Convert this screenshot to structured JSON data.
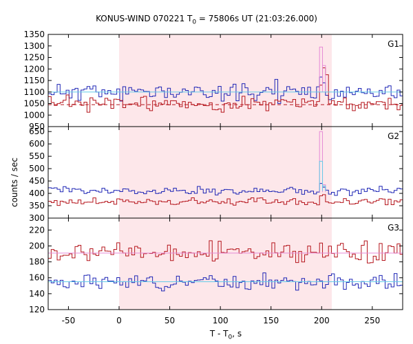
{
  "chart_data": {
    "type": "line",
    "title_main": "KONUS-WIND 070221 T",
    "title_sub": "0",
    "title_rest": " = 75806s UT (21:03:26.000)",
    "xlabel_main": "T - T",
    "xlabel_sub": "0",
    "xlabel_rest": ", s",
    "ylabel": "counts / sec",
    "xlim": [
      -70,
      280
    ],
    "x_ticks": [
      -50,
      0,
      50,
      100,
      150,
      200,
      250
    ],
    "x_tick_labels": [
      "-50",
      "0",
      "50",
      "100",
      "150",
      "200",
      "250"
    ],
    "highlight_interval": [
      0,
      210
    ],
    "highlight_color": "#fde7ea",
    "bin_width": 2.944,
    "panels": [
      {
        "name": "G1",
        "ylim": [
          950,
          1350
        ],
        "y_ticks": [
          950,
          1000,
          1050,
          1100,
          1150,
          1200,
          1250,
          1300,
          1350
        ],
        "y_tick_labels": [
          "950",
          "1000",
          "1050",
          "1100",
          "1150",
          "1200",
          "1250",
          "1300",
          "1350"
        ],
        "series": [
          {
            "color": "#1c24b5",
            "level": 1100,
            "noise": 28,
            "seed": 11,
            "spikes": [
              {
                "x": 154,
                "value": 1155
              },
              {
                "x": 199,
                "value": 1165
              },
              {
                "x": 202,
                "value": 1140
              }
            ]
          },
          {
            "color": "#b5141b",
            "level": 1050,
            "noise": 24,
            "seed": 23,
            "spikes": [
              {
                "x": 199,
                "value": 1130
              },
              {
                "x": 202,
                "value": 1205
              },
              {
                "x": 205,
                "value": 1175
              }
            ]
          },
          {
            "color": "#e68ad6",
            "type": "peak",
            "baseline": 1100,
            "peaks": [
              {
                "x": 199,
                "value": 1295
              },
              {
                "x": 202,
                "value": 1215
              }
            ]
          },
          {
            "color": "#63cbe8",
            "type": "flat",
            "value": 1100
          },
          {
            "color": "#b5141b",
            "type": "dashed",
            "value": 1045
          }
        ]
      },
      {
        "name": "G2",
        "ylim": [
          300,
          670
        ],
        "y_ticks": [
          300,
          350,
          400,
          450,
          500,
          550,
          600,
          650
        ],
        "y_tick_labels": [
          "300",
          "350",
          "400",
          "450",
          "500",
          "550",
          "600",
          "650"
        ],
        "series": [
          {
            "color": "#1c24b5",
            "level": 410,
            "noise": 12,
            "seed": 37,
            "spikes": [
              {
                "x": 199,
                "value": 440
              },
              {
                "x": 202,
                "value": 425
              }
            ]
          },
          {
            "color": "#b5141b",
            "level": 365,
            "noise": 12,
            "seed": 41,
            "spikes": [
              {
                "x": 199,
                "value": 390
              },
              {
                "x": 202,
                "value": 395
              }
            ]
          },
          {
            "color": "#e68ad6",
            "type": "peak",
            "baseline": 405,
            "peaks": [
              {
                "x": 199,
                "value": 650
              },
              {
                "x": 202,
                "value": 435
              }
            ]
          },
          {
            "color": "#63cbe8",
            "type": "peak",
            "baseline": 410,
            "peaks": [
              {
                "x": 199,
                "value": 530
              },
              {
                "x": 202,
                "value": 430
              }
            ]
          }
        ]
      },
      {
        "name": "G3",
        "ylim": [
          120,
          235
        ],
        "y_ticks": [
          120,
          140,
          160,
          180,
          200,
          220
        ],
        "y_tick_labels": [
          "120",
          "140",
          "160",
          "180",
          "200",
          "220"
        ],
        "series": [
          {
            "color": "#b5141b",
            "level": 192,
            "noise": 9,
            "seed": 53,
            "spikes": []
          },
          {
            "color": "#1c24b5",
            "level": 155,
            "noise": 7,
            "seed": 67,
            "spikes": []
          },
          {
            "color": "#e68ad6",
            "type": "flat",
            "value": 191
          },
          {
            "color": "#63cbe8",
            "type": "flat",
            "value": 155
          }
        ]
      }
    ]
  }
}
